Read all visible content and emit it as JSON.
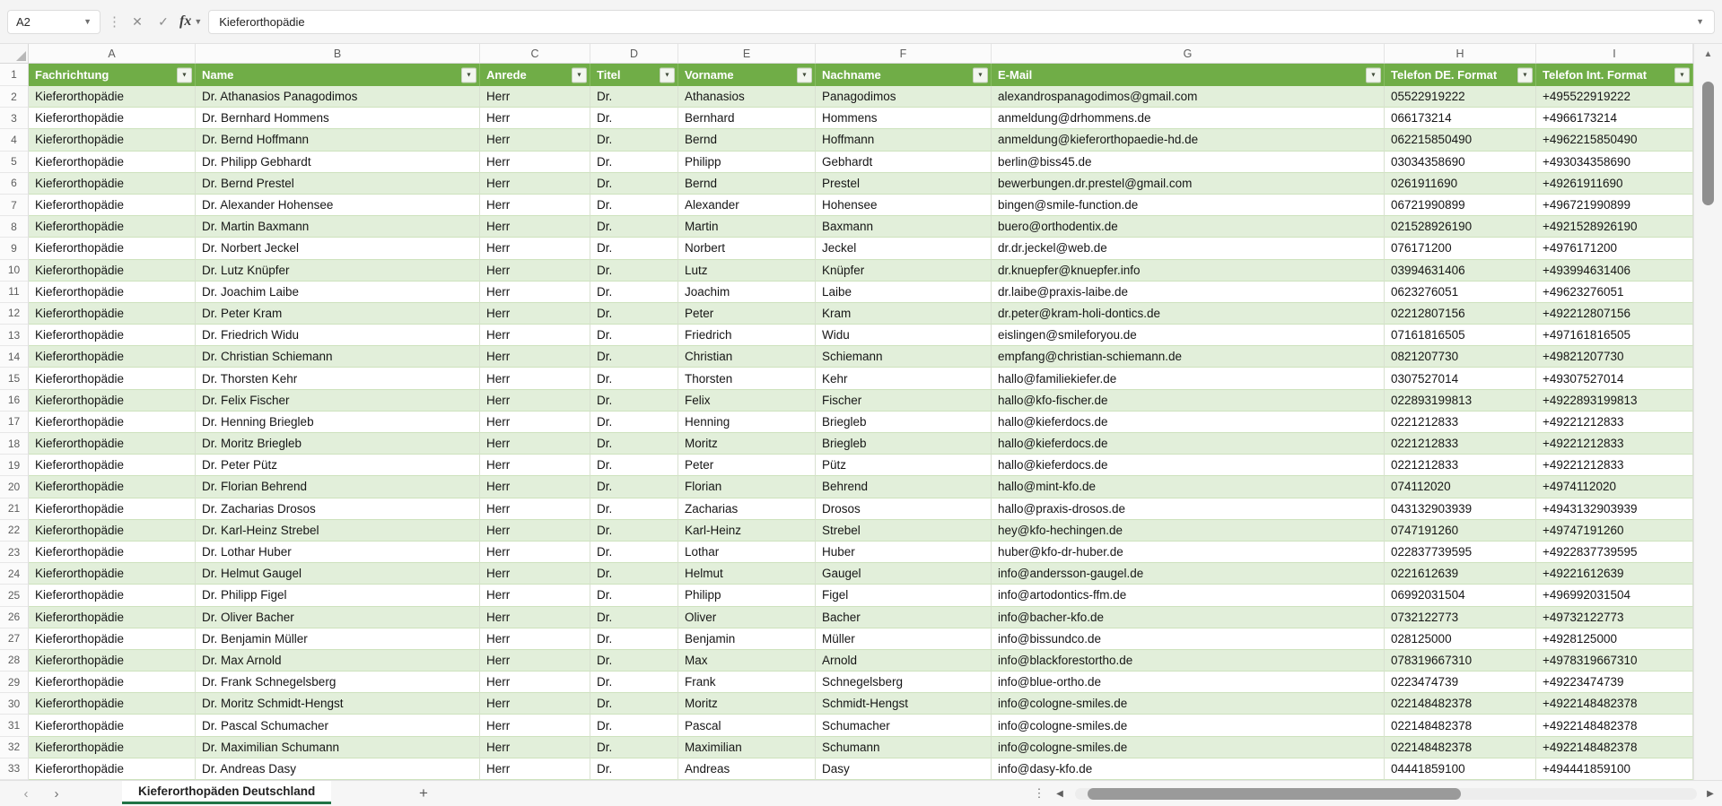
{
  "formula_bar": {
    "cell_reference": "A2",
    "fx_label": "fx",
    "formula": "Kieferorthopädie",
    "cancel_glyph": "✕",
    "confirm_glyph": "✓"
  },
  "grid": {
    "column_letters": [
      "A",
      "B",
      "C",
      "D",
      "E",
      "F",
      "G",
      "H",
      "I"
    ],
    "header_row_number": "1",
    "headers": [
      "Fachrichtung",
      "Name",
      "Anrede",
      "Titel",
      "Vorname",
      "Nachname",
      "E-Mail",
      "Telefon DE. Format",
      "Telefon Int. Format"
    ],
    "first_data_row_number": 2,
    "records": [
      [
        "Kieferorthopädie",
        "Dr. Athanasios Panagodimos",
        "Herr",
        "Dr.",
        "Athanasios",
        "Panagodimos",
        "alexandrospanagodimos@gmail.com",
        "05522919222",
        "+495522919222"
      ],
      [
        "Kieferorthopädie",
        "Dr. Bernhard Hommens",
        "Herr",
        "Dr.",
        "Bernhard",
        "Hommens",
        "anmeldung@drhommens.de",
        "066173214",
        "+4966173214"
      ],
      [
        "Kieferorthopädie",
        "Dr. Bernd Hoffmann",
        "Herr",
        "Dr.",
        "Bernd",
        "Hoffmann",
        "anmeldung@kieferorthopaedie-hd.de",
        "062215850490",
        "+4962215850490"
      ],
      [
        "Kieferorthopädie",
        "Dr. Philipp Gebhardt",
        "Herr",
        "Dr.",
        "Philipp",
        "Gebhardt",
        "berlin@biss45.de",
        "03034358690",
        "+493034358690"
      ],
      [
        "Kieferorthopädie",
        "Dr. Bernd Prestel",
        "Herr",
        "Dr.",
        "Bernd",
        "Prestel",
        "bewerbungen.dr.prestel@gmail.com",
        "0261911690",
        "+49261911690"
      ],
      [
        "Kieferorthopädie",
        "Dr. Alexander Hohensee",
        "Herr",
        "Dr.",
        "Alexander",
        "Hohensee",
        "bingen@smile-function.de",
        "06721990899",
        "+496721990899"
      ],
      [
        "Kieferorthopädie",
        "Dr. Martin Baxmann",
        "Herr",
        "Dr.",
        "Martin",
        "Baxmann",
        "buero@orthodentix.de",
        "021528926190",
        "+4921528926190"
      ],
      [
        "Kieferorthopädie",
        "Dr. Norbert Jeckel",
        "Herr",
        "Dr.",
        "Norbert",
        "Jeckel",
        "dr.dr.jeckel@web.de",
        "076171200",
        "+4976171200"
      ],
      [
        "Kieferorthopädie",
        "Dr. Lutz Knüpfer",
        "Herr",
        "Dr.",
        "Lutz",
        "Knüpfer",
        "dr.knuepfer@knuepfer.info",
        "03994631406",
        "+493994631406"
      ],
      [
        "Kieferorthopädie",
        "Dr. Joachim Laibe",
        "Herr",
        "Dr.",
        "Joachim",
        "Laibe",
        "dr.laibe@praxis-laibe.de",
        "0623276051",
        "+49623276051"
      ],
      [
        "Kieferorthopädie",
        "Dr. Peter Kram",
        "Herr",
        "Dr.",
        "Peter",
        "Kram",
        "dr.peter@kram-holi-dontics.de",
        "02212807156",
        "+492212807156"
      ],
      [
        "Kieferorthopädie",
        "Dr. Friedrich Widu",
        "Herr",
        "Dr.",
        "Friedrich",
        "Widu",
        "eislingen@smileforyou.de",
        "07161816505",
        "+497161816505"
      ],
      [
        "Kieferorthopädie",
        "Dr. Christian Schiemann",
        "Herr",
        "Dr.",
        "Christian",
        "Schiemann",
        "empfang@christian-schiemann.de",
        "0821207730",
        "+49821207730"
      ],
      [
        "Kieferorthopädie",
        "Dr. Thorsten Kehr",
        "Herr",
        "Dr.",
        "Thorsten",
        "Kehr",
        "hallo@familiekiefer.de",
        "0307527014",
        "+49307527014"
      ],
      [
        "Kieferorthopädie",
        "Dr. Felix Fischer",
        "Herr",
        "Dr.",
        "Felix",
        "Fischer",
        "hallo@kfo-fischer.de",
        "022893199813",
        "+4922893199813"
      ],
      [
        "Kieferorthopädie",
        "Dr. Henning Briegleb",
        "Herr",
        "Dr.",
        "Henning",
        "Briegleb",
        "hallo@kieferdocs.de",
        "0221212833",
        "+49221212833"
      ],
      [
        "Kieferorthopädie",
        "Dr. Moritz Briegleb",
        "Herr",
        "Dr.",
        "Moritz",
        "Briegleb",
        "hallo@kieferdocs.de",
        "0221212833",
        "+49221212833"
      ],
      [
        "Kieferorthopädie",
        "Dr. Peter Pütz",
        "Herr",
        "Dr.",
        "Peter",
        "Pütz",
        "hallo@kieferdocs.de",
        "0221212833",
        "+49221212833"
      ],
      [
        "Kieferorthopädie",
        "Dr. Florian Behrend",
        "Herr",
        "Dr.",
        "Florian",
        "Behrend",
        "hallo@mint-kfo.de",
        "074112020",
        "+4974112020"
      ],
      [
        "Kieferorthopädie",
        "Dr. Zacharias Drosos",
        "Herr",
        "Dr.",
        "Zacharias",
        "Drosos",
        "hallo@praxis-drosos.de",
        "043132903939",
        "+4943132903939"
      ],
      [
        "Kieferorthopädie",
        "Dr. Karl-Heinz Strebel",
        "Herr",
        "Dr.",
        "Karl-Heinz",
        "Strebel",
        "hey@kfo-hechingen.de",
        "0747191260",
        "+49747191260"
      ],
      [
        "Kieferorthopädie",
        "Dr. Lothar Huber",
        "Herr",
        "Dr.",
        "Lothar",
        "Huber",
        "huber@kfo-dr-huber.de",
        "022837739595",
        "+4922837739595"
      ],
      [
        "Kieferorthopädie",
        "Dr. Helmut Gaugel",
        "Herr",
        "Dr.",
        "Helmut",
        "Gaugel",
        "info@andersson-gaugel.de",
        "0221612639",
        "+49221612639"
      ],
      [
        "Kieferorthopädie",
        "Dr. Philipp Figel",
        "Herr",
        "Dr.",
        "Philipp",
        "Figel",
        "info@artodontics-ffm.de",
        "06992031504",
        "+496992031504"
      ],
      [
        "Kieferorthopädie",
        "Dr. Oliver Bacher",
        "Herr",
        "Dr.",
        "Oliver",
        "Bacher",
        "info@bacher-kfo.de",
        "0732122773",
        "+49732122773"
      ],
      [
        "Kieferorthopädie",
        "Dr. Benjamin Müller",
        "Herr",
        "Dr.",
        "Benjamin",
        "Müller",
        "info@bissundco.de",
        "028125000",
        "+4928125000"
      ],
      [
        "Kieferorthopädie",
        "Dr. Max Arnold",
        "Herr",
        "Dr.",
        "Max",
        "Arnold",
        "info@blackforestortho.de",
        "078319667310",
        "+4978319667310"
      ],
      [
        "Kieferorthopädie",
        "Dr. Frank Schnegelsberg",
        "Herr",
        "Dr.",
        "Frank",
        "Schnegelsberg",
        "info@blue-ortho.de",
        "0223474739",
        "+49223474739"
      ],
      [
        "Kieferorthopädie",
        "Dr. Moritz Schmidt-Hengst",
        "Herr",
        "Dr.",
        "Moritz",
        "Schmidt-Hengst",
        "info@cologne-smiles.de",
        "022148482378",
        "+4922148482378"
      ],
      [
        "Kieferorthopädie",
        "Dr. Pascal Schumacher",
        "Herr",
        "Dr.",
        "Pascal",
        "Schumacher",
        "info@cologne-smiles.de",
        "022148482378",
        "+4922148482378"
      ],
      [
        "Kieferorthopädie",
        "Dr. Maximilian Schumann",
        "Herr",
        "Dr.",
        "Maximilian",
        "Schumann",
        "info@cologne-smiles.de",
        "022148482378",
        "+4922148482378"
      ],
      [
        "Kieferorthopädie",
        "Dr. Andreas Dasy",
        "Herr",
        "Dr.",
        "Andreas",
        "Dasy",
        "info@dasy-kfo.de",
        "04441859100",
        "+494441859100"
      ]
    ]
  },
  "sheet_bar": {
    "nav_left_glyph": "‹",
    "nav_right_glyph": "›",
    "active_tab": "Kieferorthopäden Deutschland",
    "add_sheet_glyph": "+",
    "overflow_glyph": "⋮",
    "scroll_left_glyph": "◀",
    "scroll_right_glyph": "▶"
  },
  "colors": {
    "table_header_green": "#70AD47",
    "banded_row_green": "#E2EFDA",
    "active_tab_green": "#217346"
  }
}
